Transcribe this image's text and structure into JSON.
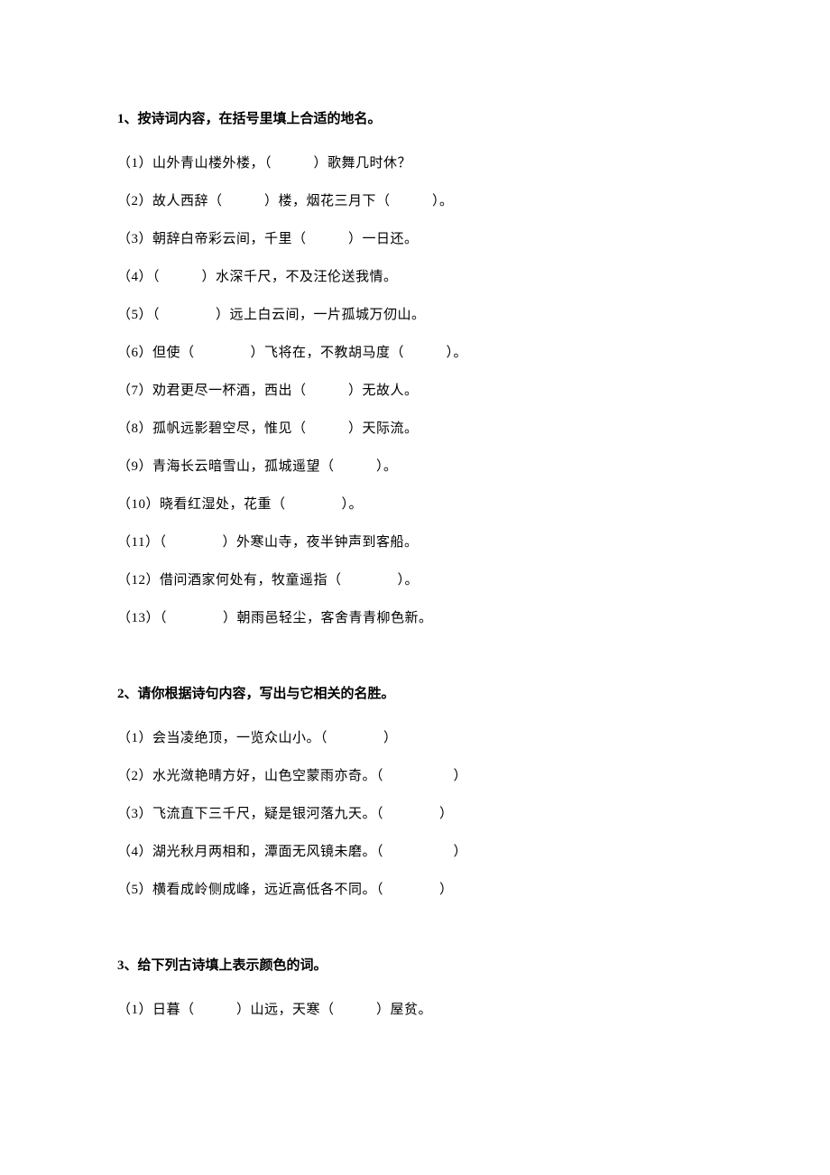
{
  "section1": {
    "title": "1、按诗词内容，在括号里填上合适的地名。",
    "items": [
      "（1）山外青山楼外楼，（　　　）歌舞几时休？",
      "（2）故人西辞（　　　）楼，烟花三月下（　　　）。",
      "（3）朝辞白帝彩云间，千里（　　　）一日还。",
      "（4）（　　　）水深千尺，不及汪伦送我情。",
      "（5）（　　　　）远上白云间，一片孤城万仞山。",
      "（6）但使（　　　　）飞将在，不教胡马度（　　　）。",
      "（7）劝君更尽一杯酒，西出（　　　）无故人。",
      "（8）孤帆远影碧空尽，惟见（　　　）天际流。",
      "（9）青海长云暗雪山，孤城遥望（　　　）。",
      "（10）晓看红湿处，花重（　　　　）。",
      "（11）（　　　　）外寒山寺，夜半钟声到客船。",
      "（12）借问酒家何处有，牧童遥指（　　　　）。",
      "（13）（　　　　）朝雨邑轻尘，客舍青青柳色新。"
    ]
  },
  "section2": {
    "title": "2、请你根据诗句内容，写出与它相关的名胜。",
    "items": [
      "（1）会当凌绝顶，一览众山小。（　　　　）",
      "（2）水光潋艳晴方好，山色空蒙雨亦奇。（　　　　　）",
      "（3）飞流直下三千尺，疑是银河落九天。（　　　　）",
      "（4）湖光秋月两相和，潭面无风镜未磨。（　　　　　）",
      "（5）横看成岭侧成峰，远近高低各不同。（　　　　）"
    ]
  },
  "section3": {
    "title": "3、给下列古诗填上表示颜色的词。",
    "items": [
      "（1）日暮（　　　）山远，天寒（　　　）屋贫。"
    ]
  }
}
